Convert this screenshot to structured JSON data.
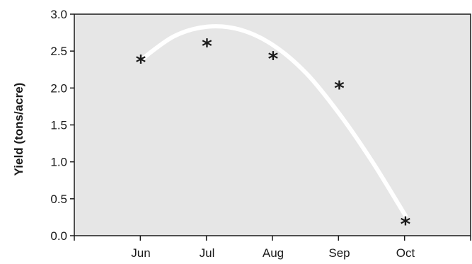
{
  "chart_data": {
    "type": "scatter",
    "ylabel": "Yield (tons/acre)",
    "xlabel": "",
    "categories": [
      "Jun",
      "Jul",
      "Aug",
      "Sep",
      "Oct"
    ],
    "ylim": [
      0,
      3.0
    ],
    "yticks": [
      "0.0",
      "0.5",
      "1.0",
      "1.5",
      "2.0",
      "2.5",
      "3.0"
    ],
    "series": [
      {
        "marker": "*",
        "values": [
          2.42,
          2.64,
          2.47,
          2.07,
          0.23
        ]
      }
    ],
    "trend_curve": {
      "style": "smooth",
      "color": "#ffffff",
      "x": [
        0.0,
        0.5,
        1.0,
        1.5,
        2.0,
        2.5,
        3.0,
        3.5,
        4.0
      ],
      "y": [
        2.38,
        2.7,
        2.83,
        2.79,
        2.58,
        2.2,
        1.65,
        1.0,
        0.27
      ]
    },
    "plot_background": "#e6e6e6",
    "grid": false,
    "legend": "none"
  }
}
